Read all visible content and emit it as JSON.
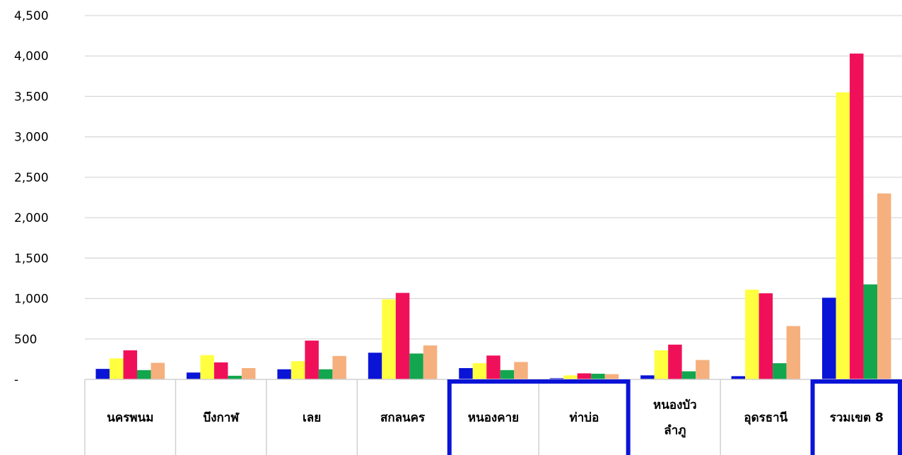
{
  "chart_data": {
    "type": "bar",
    "categories": [
      [
        "นครพนม"
      ],
      [
        "บึงกาฬ"
      ],
      [
        "เลย"
      ],
      [
        "สกลนคร"
      ],
      [
        "หนองคาย"
      ],
      [
        "ท่าบ่อ"
      ],
      [
        "หนองบัว",
        "ลำภู"
      ],
      [
        "อุดรธานี"
      ],
      [
        "รวมเขต 8"
      ]
    ],
    "series": [
      {
        "color": "#0a14d6",
        "values": [
          130,
          85,
          125,
          330,
          140,
          15,
          50,
          40,
          1010
        ]
      },
      {
        "color": "#ffff40",
        "values": [
          260,
          300,
          225,
          990,
          200,
          50,
          360,
          1110,
          3550
        ]
      },
      {
        "color": "#f0105a",
        "values": [
          360,
          210,
          480,
          1070,
          295,
          75,
          430,
          1065,
          4030
        ]
      },
      {
        "color": "#12a64e",
        "values": [
          115,
          45,
          125,
          320,
          115,
          70,
          100,
          200,
          1175
        ]
      },
      {
        "color": "#f5b07e",
        "values": [
          205,
          140,
          290,
          420,
          215,
          65,
          240,
          660,
          2300
        ]
      }
    ],
    "ylim": [
      0,
      4500
    ],
    "yticks": [
      0,
      500,
      1000,
      1500,
      2000,
      2500,
      3000,
      3500,
      4000,
      4500
    ],
    "ytick_labels": [
      "-",
      "500",
      "1,000",
      "1,500",
      "2,000",
      "2,500",
      "3,000",
      "3,500",
      "4,000",
      "4,500"
    ],
    "highlighted_groups": [
      [
        4,
        5
      ],
      [
        8,
        8
      ]
    ],
    "highlight_color": "#0a14d6",
    "grid": true,
    "title": "",
    "xlabel": "",
    "ylabel": ""
  }
}
